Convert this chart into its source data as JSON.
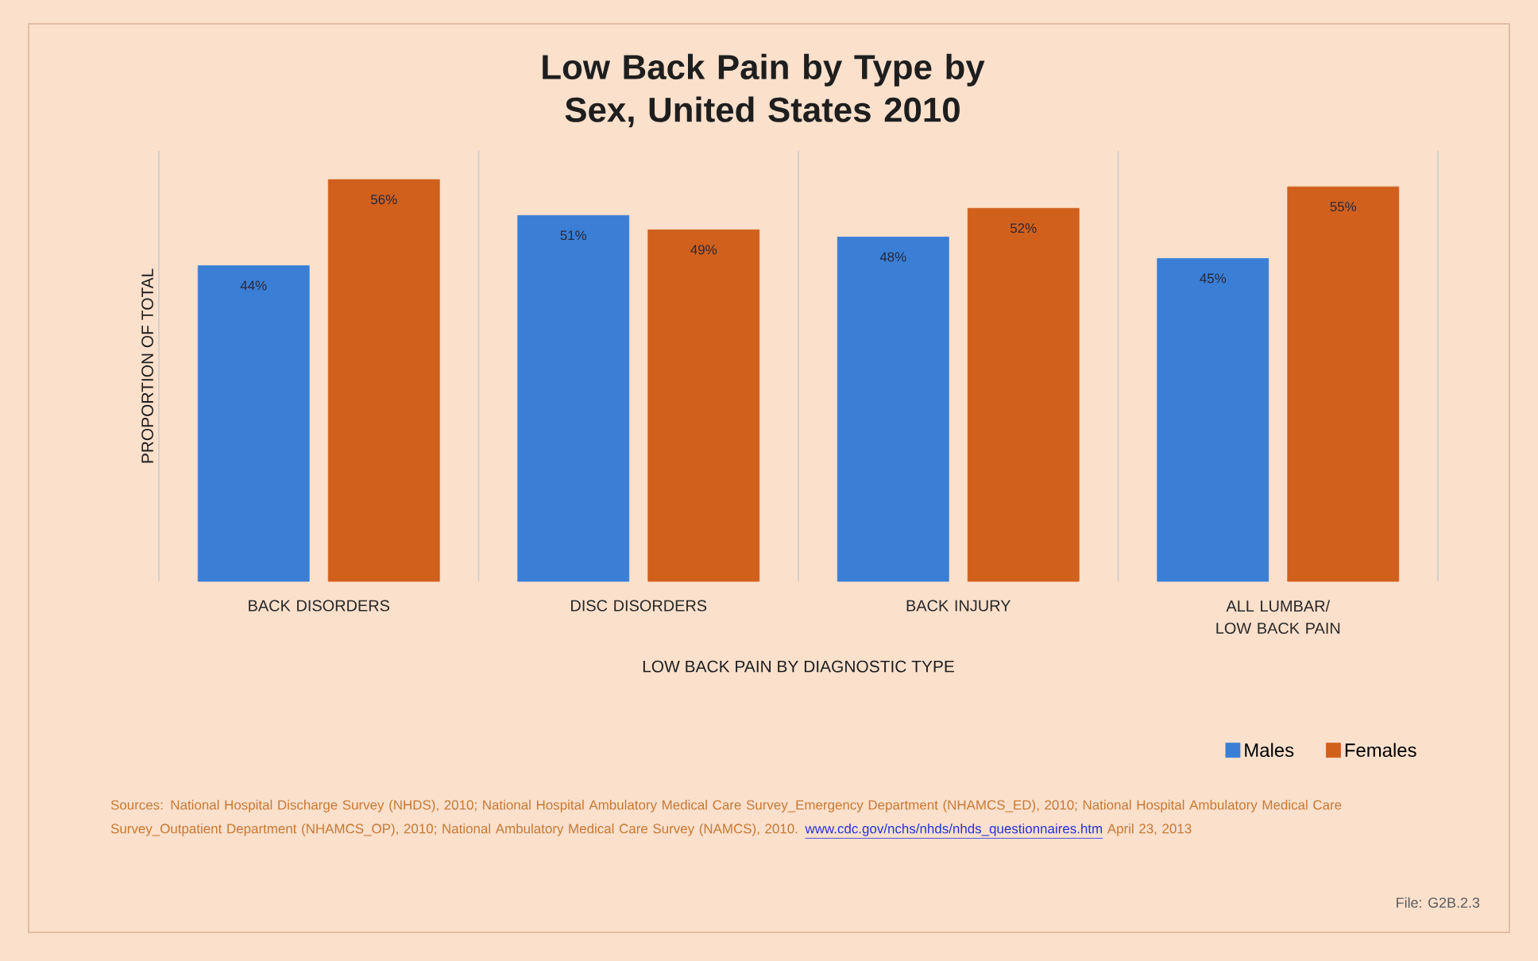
{
  "chart_data": {
    "type": "bar",
    "title": "Low Back Pain by Type by Sex, United States 2010",
    "xlabel": "LOW BACK PAIN BY DIAGNOSTIC TYPE",
    "ylabel": "PROPORTION OF TOTAL",
    "categories": [
      "BACK DISORDERS",
      "DISC DISORDERS",
      "BACK INJURY",
      "ALL LUMBAR/ LOW BACK PAIN"
    ],
    "series": [
      {
        "name": "Males",
        "color": "#3a7fd5",
        "values": [
          44,
          51,
          48,
          45
        ],
        "value_labels": [
          "44%",
          "51%",
          "48%",
          "45%"
        ]
      },
      {
        "name": "Females",
        "color": "#d0601c",
        "values": [
          56,
          49,
          52,
          55
        ],
        "value_labels": [
          "56%",
          "49%",
          "52%",
          "55%"
        ]
      }
    ],
    "ylim": [
      0,
      60
    ],
    "tick_labels": "x",
    "grid": "x",
    "legend": "bottom right",
    "annotations": [
      "Sources: National Hospital Discharge Survey (NHDS), 2010;  National Hospital Ambulatory Medical Care Survey_Emergency Department (NHAMCS_ED), 2010;  National Hospital Ambulatory Medical Care Survey_Outpatient Department (NHAMCS_OP), 2010;  National Ambulatory Medical Care Survey (NAMCS), 2010.",
      "www.cdc.gov/nchs/nhds/nhds_questionnaires.htm",
      "April 23, 2013",
      "File: G2B.2.3"
    ]
  }
}
